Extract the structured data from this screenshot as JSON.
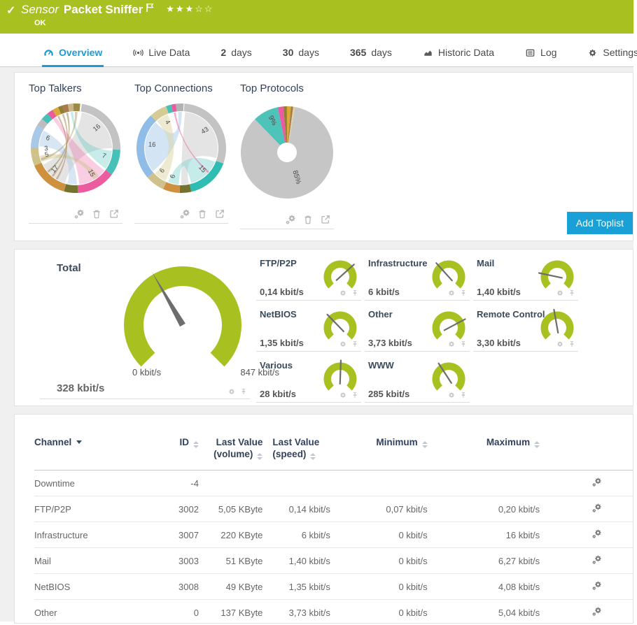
{
  "header": {
    "kind_label": "Sensor",
    "title": "Packet Sniffer",
    "status": "OK",
    "stars_filled": 3,
    "stars_total": 5,
    "color": "#a9c120"
  },
  "tabs": [
    {
      "label": "Overview",
      "icon": "gauge-icon",
      "active": true
    },
    {
      "label": "Live Data",
      "icon": "live-icon"
    },
    {
      "num": "2",
      "label": "days"
    },
    {
      "num": "30",
      "label": "days"
    },
    {
      "num": "365",
      "label": "days"
    },
    {
      "label": "Historic Data",
      "icon": "chart-icon"
    },
    {
      "label": "Log",
      "icon": "log-icon"
    },
    {
      "label": "Settings",
      "icon": "gear-icon"
    }
  ],
  "toplists": {
    "add_button": "Add Toplist",
    "actions": [
      "settings",
      "delete",
      "open"
    ],
    "items": [
      {
        "title": "Top Talkers",
        "type": "chord",
        "segments": [
          {
            "from": 8,
            "to": 92,
            "color": "#c3c3c3",
            "label": "16"
          },
          {
            "from": 92,
            "to": 126,
            "color": "#45c1b8",
            "label": "7"
          },
          {
            "from": 126,
            "to": 177,
            "color": "#ea5c9f",
            "label": "15"
          },
          {
            "from": 177,
            "to": 195,
            "color": "#73722f"
          },
          {
            "from": 195,
            "to": 247,
            "color": "#cd9140",
            "label": "17"
          },
          {
            "from": 247,
            "to": 260,
            "color": "#cfc18a",
            "label": "5"
          },
          {
            "from": 260,
            "to": 271,
            "color": "#cfc18a",
            "label": "3"
          },
          {
            "from": 271,
            "to": 301,
            "color": "#a9c7e6",
            "label": "6"
          },
          {
            "from": 301,
            "to": 311,
            "color": "#bdbdbd"
          },
          {
            "from": 311,
            "to": 321,
            "color": "#45c1b8"
          },
          {
            "from": 321,
            "to": 329,
            "color": "#ea5c9f"
          },
          {
            "from": 329,
            "to": 337,
            "color": "#d9a93a"
          },
          {
            "from": 337,
            "to": 343,
            "color": "#8f7f33"
          },
          {
            "from": 343,
            "to": 350,
            "color": "#a97a4b"
          },
          {
            "from": 350,
            "to": 357,
            "color": "#cbb68c"
          },
          {
            "from": 357,
            "to": 366,
            "color": "#9c8a45"
          }
        ],
        "ribbons": [
          {
            "a1": 10,
            "a2": 90,
            "b1": 197,
            "b2": 243,
            "color": "#c9c9c9",
            "op": 0.5
          },
          {
            "a1": 128,
            "a2": 174,
            "b1": 322,
            "b2": 328,
            "color": "#ea5c9f",
            "op": 0.3
          },
          {
            "a1": 94,
            "a2": 124,
            "b1": 352,
            "b2": 356,
            "color": "#45c1b8",
            "op": 0.3
          },
          {
            "a1": 273,
            "a2": 299,
            "b1": 178,
            "b2": 193,
            "color": "#a9c7e6",
            "op": 0.45
          },
          {
            "a1": 248,
            "a2": 258,
            "b1": 140,
            "b2": 150,
            "color": "#cfc18a",
            "op": 0.45
          },
          {
            "a1": 330,
            "a2": 333,
            "b1": 210,
            "b2": 213,
            "color": "#a97a4b",
            "op": 0.5
          },
          {
            "a1": 338,
            "a2": 341,
            "b1": 218,
            "b2": 221,
            "color": "#a97a4b",
            "op": 0.5
          },
          {
            "a1": 345,
            "a2": 348,
            "b1": 228,
            "b2": 231,
            "color": "#8f7f33",
            "op": 0.5
          },
          {
            "a1": 359,
            "a2": 363,
            "b1": 250,
            "b2": 254,
            "color": "#9c8a45",
            "op": 0.4
          }
        ]
      },
      {
        "title": "Top Connections",
        "type": "chord",
        "segments": [
          {
            "from": 4,
            "to": 110,
            "color": "#c3c3c3",
            "label": "43"
          },
          {
            "from": 110,
            "to": 167,
            "color": "#2fbdb3",
            "label": "15"
          },
          {
            "from": 167,
            "to": 182,
            "color": "#73722f"
          },
          {
            "from": 182,
            "to": 204,
            "color": "#cd9140",
            "label": "6"
          },
          {
            "from": 204,
            "to": 229,
            "color": "#cfc18a",
            "label": "6"
          },
          {
            "from": 229,
            "to": 317,
            "color": "#8fbde7",
            "label": "16"
          },
          {
            "from": 317,
            "to": 340,
            "color": "#d6cb95",
            "label": "4"
          },
          {
            "from": 340,
            "to": 347,
            "color": "#45c1b8"
          },
          {
            "from": 347,
            "to": 353,
            "color": "#ea5c9f"
          },
          {
            "from": 353,
            "to": 363,
            "color": "#b3b3b3"
          }
        ],
        "ribbons": [
          {
            "a1": 231,
            "a2": 315,
            "b1": 355,
            "b2": 361,
            "color": "#a8cbec",
            "op": 0.5
          },
          {
            "a1": 6,
            "a2": 106,
            "b1": 168,
            "b2": 180,
            "color": "#cdcdcd",
            "op": 0.55
          },
          {
            "a1": 112,
            "a2": 164,
            "b1": 184,
            "b2": 201,
            "color": "#7fd4cd",
            "op": 0.45
          },
          {
            "a1": 318,
            "a2": 338,
            "b1": 206,
            "b2": 226,
            "color": "#ded4a4",
            "op": 0.5
          },
          {
            "a1": 348,
            "a2": 351,
            "b1": 130,
            "b2": 133,
            "color": "#ea5c9f",
            "op": 0.5
          }
        ]
      },
      {
        "title": "Top Protocols",
        "type": "pie",
        "start_deg": 10,
        "slices": [
          {
            "value": 85,
            "color": "#c6c6c6",
            "label": "85%",
            "label_r": 38
          },
          {
            "value": 9,
            "color": "#4ec3ba",
            "label": "9%",
            "label_r": 50
          },
          {
            "value": 2,
            "color": "#ea5c9f"
          },
          {
            "value": 1.2,
            "color": "#8f7f33"
          },
          {
            "value": 1.4,
            "color": "#d9a93a"
          },
          {
            "value": 0.8,
            "color": "#a97a4b"
          },
          {
            "value": 0.6,
            "color": "#ded4a4"
          }
        ]
      }
    ]
  },
  "gauges": {
    "color": "#a9c120",
    "cell_actions": [
      "settings",
      "pin"
    ],
    "total": {
      "label": "Total",
      "value": "328 kbit/s",
      "scale_min": "0 kbit/s",
      "scale_max": "847 kbit/s",
      "needle_deg": -30
    },
    "channels": [
      {
        "label": "FTP/P2P",
        "value": "0,14 kbit/s",
        "needle_deg": 48
      },
      {
        "label": "Infrastructure",
        "value": "6 kbit/s",
        "needle_deg": -42
      },
      {
        "label": "Mail",
        "value": "1,40 kbit/s",
        "needle_deg": -78
      },
      {
        "label": "NetBIOS",
        "value": "1,35 kbit/s",
        "needle_deg": -44
      },
      {
        "label": "Other",
        "value": "3,73 kbit/s",
        "needle_deg": 62
      },
      {
        "label": "Remote Control",
        "value": "3,30 kbit/s",
        "needle_deg": -10
      },
      {
        "label": "Various",
        "value": "28 kbit/s",
        "needle_deg": 2
      },
      {
        "label": "WWW",
        "value": "285 kbit/s",
        "needle_deg": -33
      }
    ]
  },
  "table": {
    "headers": [
      {
        "line1": "Channel",
        "sort": "caret"
      },
      {
        "line1": "ID",
        "sort": "both"
      },
      {
        "line1": "Last Value",
        "line2": "(volume)",
        "sort": "both"
      },
      {
        "line1": "Last Value",
        "line2": "(speed)",
        "sort": "both"
      },
      {
        "line1": "Minimum",
        "sort": "both"
      },
      {
        "line1": "Maximum",
        "sort": "both"
      }
    ],
    "rows": [
      {
        "channel": "Downtime",
        "id": "-4",
        "volume": "",
        "speed": "",
        "min": "",
        "max": ""
      },
      {
        "channel": "FTP/P2P",
        "id": "3002",
        "volume": "5,05 KByte",
        "speed": "0,14 kbit/s",
        "min": "0,07 kbit/s",
        "max": "0,20 kbit/s"
      },
      {
        "channel": "Infrastructure",
        "id": "3007",
        "volume": "220 KByte",
        "speed": "6 kbit/s",
        "min": "0 kbit/s",
        "max": "16 kbit/s"
      },
      {
        "channel": "Mail",
        "id": "3003",
        "volume": "51 KByte",
        "speed": "1,40 kbit/s",
        "min": "0 kbit/s",
        "max": "6,27 kbit/s"
      },
      {
        "channel": "NetBIOS",
        "id": "3008",
        "volume": "49 KByte",
        "speed": "1,35 kbit/s",
        "min": "0 kbit/s",
        "max": "4,08 kbit/s"
      },
      {
        "channel": "Other",
        "id": "0",
        "volume": "137 KByte",
        "speed": "3,73 kbit/s",
        "min": "0 kbit/s",
        "max": "5,04 kbit/s"
      }
    ]
  }
}
